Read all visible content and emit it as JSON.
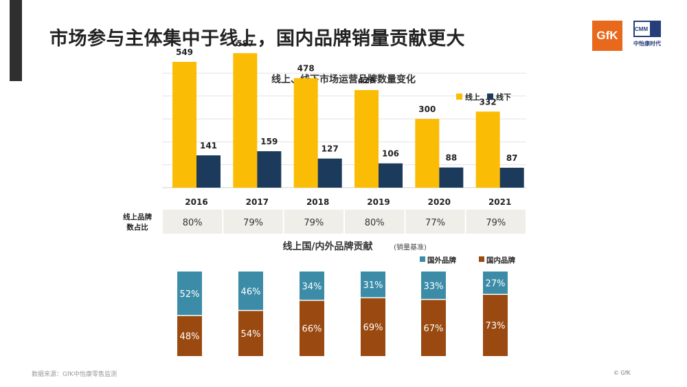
{
  "title": "市场参与主体集中于线上，国内品牌销量贡献更大",
  "logos": {
    "gfk": "GfK",
    "cmm_box": "CMM",
    "cmm_text": "中怡康时代"
  },
  "footer": {
    "source": "数据来源：GfK中怡康零售监测",
    "copyright": "© GfK"
  },
  "colors": {
    "online": "#fbbc05",
    "offline": "#1b3a5c",
    "foreign": "#3c8ca8",
    "domestic": "#9a4a10",
    "accent_bar": "#2f2f2f"
  },
  "chart_data": [
    {
      "type": "bar",
      "title": "线上、线下市场运营品牌数量变化",
      "categories": [
        "2016",
        "2017",
        "2018",
        "2019",
        "2020",
        "2021"
      ],
      "series": [
        {
          "name": "线上",
          "values": [
            549,
            587,
            478,
            426,
            300,
            332
          ]
        },
        {
          "name": "线下",
          "values": [
            141,
            159,
            127,
            106,
            88,
            87
          ]
        }
      ],
      "ylim": [
        0,
        600
      ],
      "grid": true,
      "legend": "top-right"
    },
    {
      "type": "table",
      "row_label": "线上品牌数占比",
      "categories": [
        "2016",
        "2017",
        "2018",
        "2019",
        "2020",
        "2021"
      ],
      "values": [
        "80%",
        "79%",
        "79%",
        "80%",
        "77%",
        "79%"
      ]
    },
    {
      "type": "bar",
      "stacked": true,
      "title": "线上国/内外品牌贡献",
      "subtitle": "(销量基准)",
      "categories": [
        "2016",
        "2017",
        "2018",
        "2019",
        "2020",
        "2021"
      ],
      "series": [
        {
          "name": "国外品牌",
          "values": [
            52,
            46,
            34,
            31,
            33,
            27
          ]
        },
        {
          "name": "国内品牌",
          "values": [
            48,
            54,
            66,
            69,
            67,
            73
          ]
        }
      ],
      "ylim": [
        0,
        100
      ],
      "legend": "top-right"
    }
  ]
}
